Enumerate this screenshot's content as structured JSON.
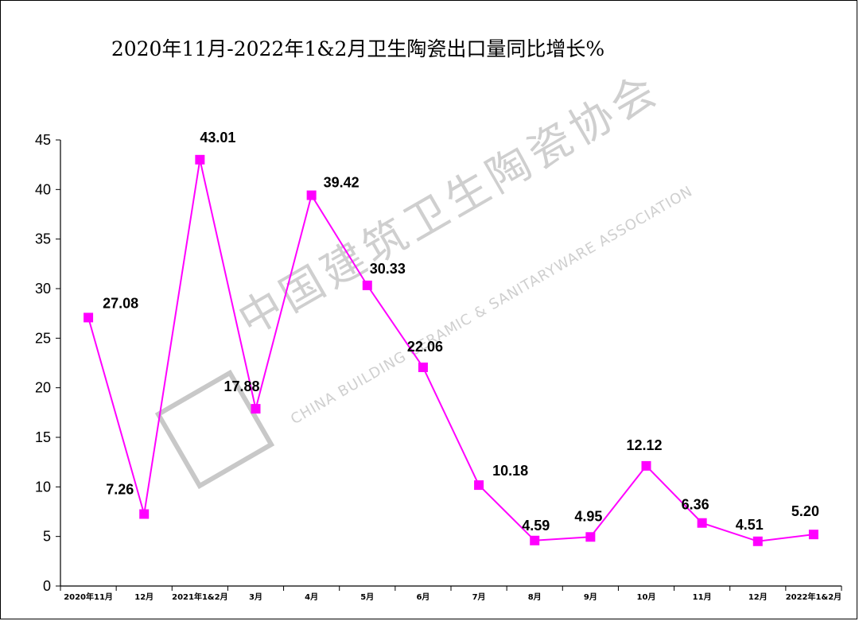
{
  "chart_data": {
    "type": "line",
    "title": "2020年11月-2022年1&2月卫生陶瓷出口量同比增长%",
    "xlabel": "",
    "ylabel": "",
    "categories": [
      "2020年11月",
      "12月",
      "2021年1&2月",
      "3月",
      "4月",
      "5月",
      "6月",
      "7月",
      "8月",
      "9月",
      "10月",
      "11月",
      "12月",
      "2022年1&2月"
    ],
    "series": [
      {
        "values": [
          27.08,
          7.26,
          43.01,
          17.88,
          39.42,
          30.33,
          22.06,
          10.18,
          4.59,
          4.95,
          12.12,
          6.36,
          4.51,
          5.2
        ],
        "labels": [
          "27.08",
          "7.26",
          "43.01",
          "17.88",
          "39.42",
          "30.33",
          "22.06",
          "10.18",
          "4.59",
          "4.95",
          "12.12",
          "6.36",
          "4.51",
          "5.20"
        ],
        "color": "#ff00ff",
        "marker": "square"
      }
    ],
    "ylim": [
      0,
      45
    ],
    "yticks": [
      "0",
      "5",
      "10",
      "15",
      "20",
      "25",
      "30",
      "35",
      "40",
      "45"
    ],
    "grid": false,
    "legend": "none"
  },
  "watermark": {
    "cn": "中国建筑卫生陶瓷协会",
    "en": "CHINA BUILDING CERAMIC & SANITARYWARE ASSOCIATION",
    "color": "#cfcfcf"
  }
}
